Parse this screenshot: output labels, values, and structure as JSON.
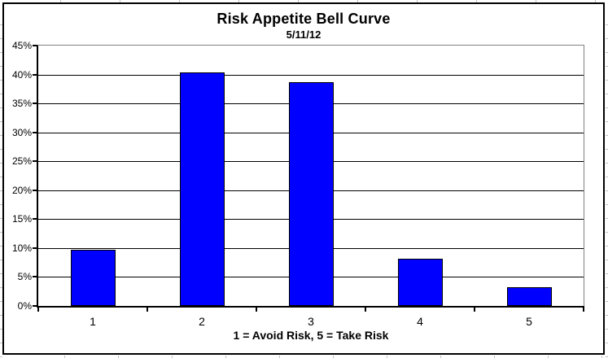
{
  "chart_data": {
    "type": "bar",
    "title": "Risk Appetite Bell Curve",
    "subtitle": "5/11/12",
    "categories": [
      "1",
      "2",
      "3",
      "4",
      "5"
    ],
    "values": [
      9.7,
      40.3,
      38.7,
      8.1,
      3.2
    ],
    "xlabel": "1 = Avoid Risk, 5 = Take Risk",
    "ylabel": "",
    "ylim": [
      0,
      45
    ],
    "ytick_step": 5,
    "ytick_suffix": "%",
    "grid": "horizontal",
    "legend": "none",
    "bar_color": "#0000ff",
    "bar_border_color": "#000000",
    "axis_color": "#000000",
    "plot_border_color": "#808080",
    "series_name": ""
  }
}
